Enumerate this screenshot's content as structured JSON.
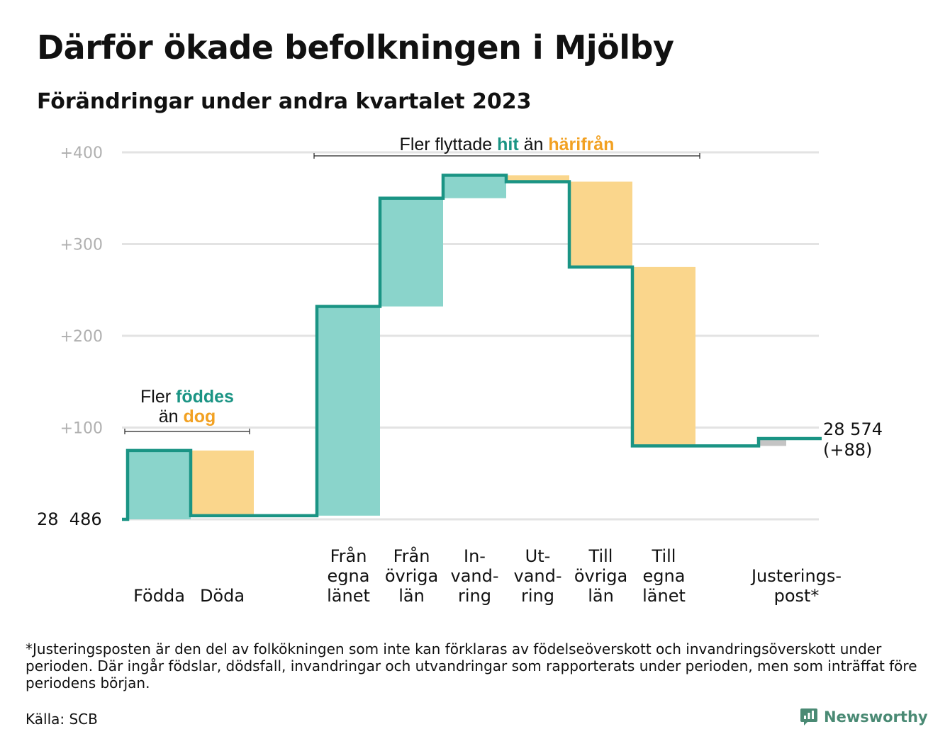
{
  "title": "Därför ökade befolkningen i Mjölby",
  "subtitle": "Förändringar under andra kvartalet 2023",
  "footnote": "*Justeringsposten är den del av folkökningen som inte kan förklaras av födelseöverskott och invandringsöverskott under perioden. Där ingår födslar, dödsfall, invandringar och utvandringar som rapporterats under perioden, men som inträffat före periodens början.",
  "source": "Källa: SCB",
  "logo_text": "Newsworthy",
  "colors": {
    "increase_fill": "#8ad4cb",
    "decrease_fill": "#fad68c",
    "adjustment_fill": "#c4c4c4",
    "line": "#1a9484",
    "teal_text": "#1a9484",
    "orange_text": "#f2a122",
    "gridline": "#e3e3e3",
    "tick_text": "#b0b0b0"
  },
  "chart_data": {
    "type": "waterfall",
    "start_label": "28  486",
    "start_value": 0,
    "end_label": "28 574",
    "end_change_label": "(+88)",
    "y_ticks": [
      {
        "value": 100,
        "label": "+100"
      },
      {
        "value": 200,
        "label": "+200"
      },
      {
        "value": 300,
        "label": "+300"
      },
      {
        "value": 400,
        "label": "+400"
      }
    ],
    "ylim": [
      0,
      400
    ],
    "steps": [
      {
        "label": "Födda",
        "from": 0,
        "to": 75,
        "kind": "increase"
      },
      {
        "label": "Döda",
        "from": 75,
        "to": 4,
        "kind": "decrease"
      },
      {
        "label": "",
        "from": 4,
        "to": 4,
        "kind": "none"
      },
      {
        "label": "Från\negna\nlänet",
        "from": 4,
        "to": 232,
        "kind": "increase"
      },
      {
        "label": "Från\növriga\nlän",
        "from": 232,
        "to": 350,
        "kind": "increase"
      },
      {
        "label": "In-\nvand-\nring",
        "from": 350,
        "to": 375,
        "kind": "increase"
      },
      {
        "label": "Ut-\nvand-\nring",
        "from": 375,
        "to": 368,
        "kind": "decrease"
      },
      {
        "label": "Till\növriga\nlän",
        "from": 368,
        "to": 275,
        "kind": "decrease"
      },
      {
        "label": "Till\negna\nlänet",
        "from": 275,
        "to": 80,
        "kind": "decrease"
      },
      {
        "label": "",
        "from": 80,
        "to": 80,
        "kind": "none"
      },
      {
        "label": "Justerings-\npost*",
        "from": 80,
        "to": 88,
        "kind": "adjustment"
      }
    ],
    "annotations": [
      {
        "id": "birth",
        "line1": {
          "prefix": "Fler ",
          "highlight": "föddes",
          "color": "teal"
        },
        "line2": {
          "prefix": "än ",
          "highlight": "dog",
          "color": "orange"
        },
        "span": [
          0,
          1
        ]
      },
      {
        "id": "migration",
        "prefix": "Fler flyttade ",
        "highlight1": "hit",
        "middle": "än ",
        "highlight2": "härifrån",
        "span": [
          3,
          8
        ]
      }
    ]
  }
}
